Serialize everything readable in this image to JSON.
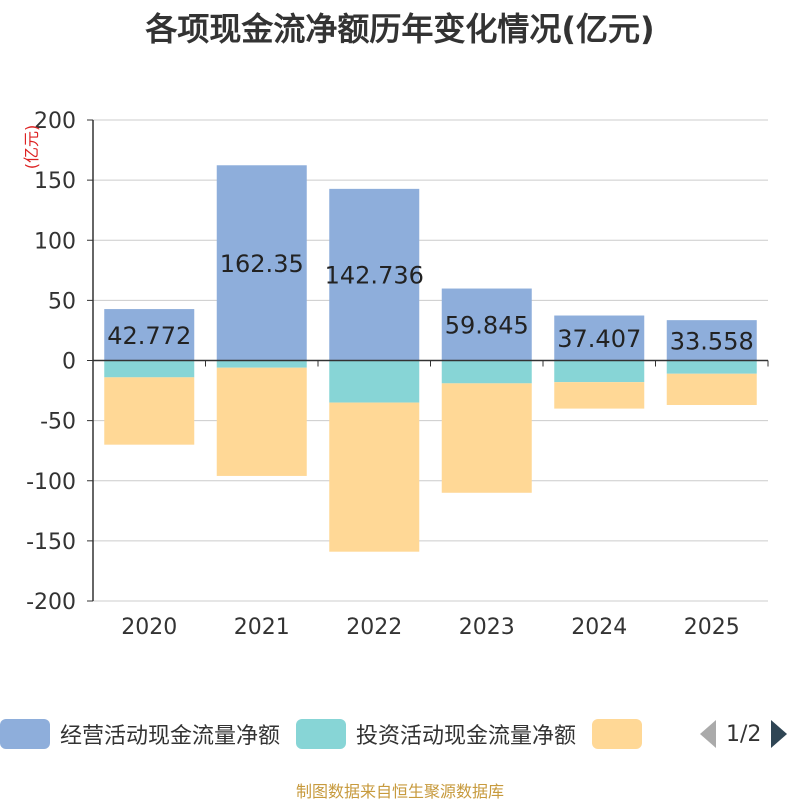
{
  "chart_data": {
    "type": "bar",
    "stacked": true,
    "title": "各项现金流净额历年变化情况(亿元)",
    "ylabel": "(亿元)",
    "xlabel": "",
    "ylim": [
      -200,
      200
    ],
    "yticks": [
      200,
      150,
      100,
      50,
      0,
      -50,
      -100,
      -150,
      -200
    ],
    "categories": [
      "2020",
      "2021",
      "2022",
      "2023",
      "2024",
      "2025"
    ],
    "series": [
      {
        "name": "经营活动现金流量净额",
        "color": "#8eaedb",
        "values": [
          42.772,
          162.35,
          142.736,
          59.845,
          37.407,
          33.558
        ],
        "labels": [
          "42.772",
          "162.35",
          "142.736",
          "59.845",
          "37.407",
          "33.558"
        ]
      },
      {
        "name": "投资活动现金流量净额",
        "color": "#87d5d6",
        "values": [
          -14,
          -6,
          -35,
          -19,
          -18,
          -11
        ]
      },
      {
        "name": "",
        "color": "#ffd896",
        "values": [
          -56,
          -90,
          -124,
          -91,
          -22,
          -26
        ]
      }
    ]
  },
  "legend": {
    "items": [
      {
        "label": "经营活动现金流量净额",
        "color": "#8eaedb"
      },
      {
        "label": "投资活动现金流量净额",
        "color": "#87d5d6"
      },
      {
        "label": "",
        "color": "#ffd896"
      }
    ],
    "page": "1/2"
  },
  "source": "制图数据来自恒生聚源数据库"
}
